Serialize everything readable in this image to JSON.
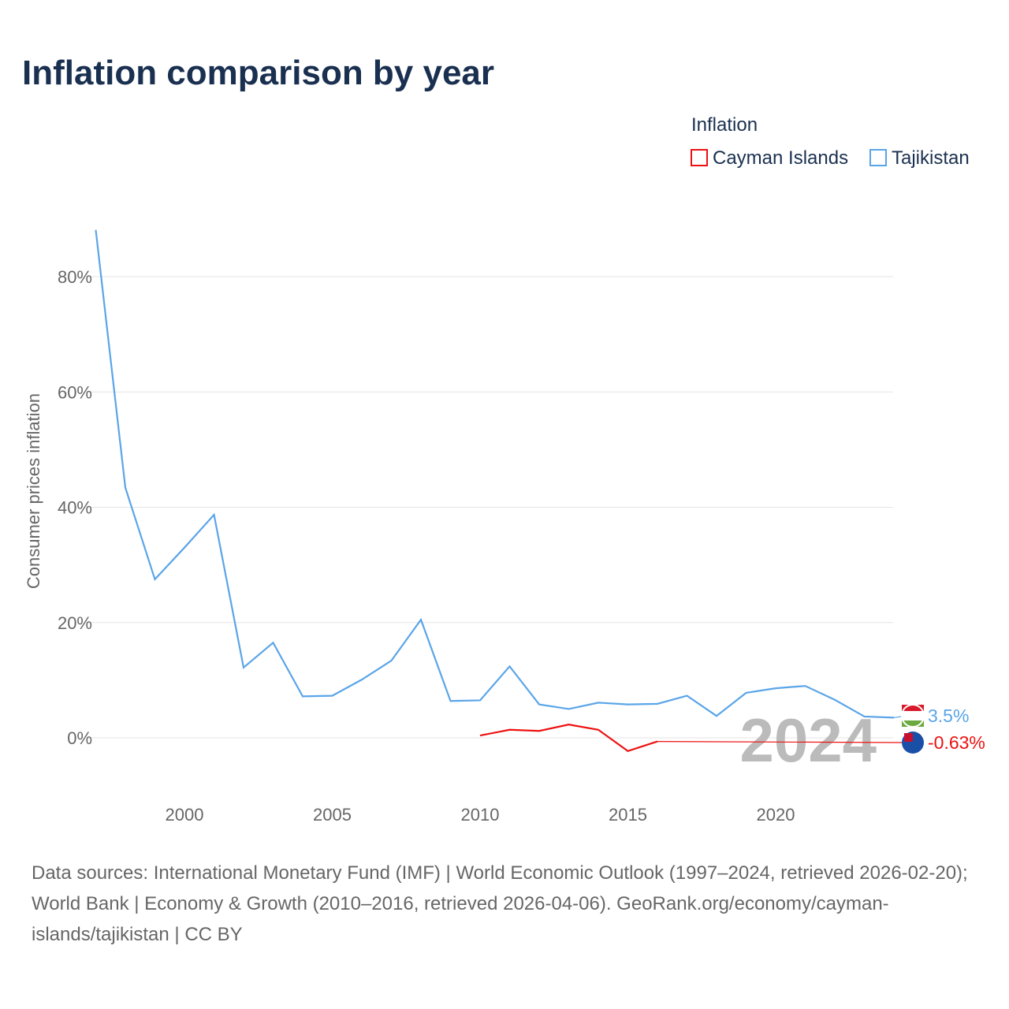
{
  "title": "Inflation comparison by year",
  "legend": {
    "title": "Inflation",
    "items": [
      "Cayman Islands",
      "Tajikistan"
    ]
  },
  "source": "Data sources: International Monetary Fund (IMF) | World Economic Outlook (1997–2024, retrieved 2026-02-20); World Bank | Economy & Growth (2010–2016, retrieved 2026-04-06). GeoRank.org/economy/cayman-islands/tajikistan | CC BY",
  "chart_data": {
    "type": "line",
    "title": "Inflation comparison by year",
    "ylabel": "Consumer prices inflation",
    "xlabel": "",
    "ylim": [
      -10,
      90
    ],
    "xlim": [
      1997,
      2024
    ],
    "yticks": [
      0,
      20,
      40,
      60,
      80
    ],
    "ytick_labels": [
      "0%",
      "20%",
      "40%",
      "60%",
      "80%"
    ],
    "xticks": [
      2000,
      2005,
      2010,
      2015,
      2020
    ],
    "xtick_labels": [
      "2000",
      "2005",
      "2010",
      "2015",
      "2020"
    ],
    "grid": true,
    "year_label": "2024",
    "series": [
      {
        "name": "Tajikistan",
        "color": "#5aa5e8",
        "end_label": "3.5%",
        "x": [
          1997,
          1998,
          1999,
          2000,
          2001,
          2002,
          2003,
          2004,
          2005,
          2006,
          2007,
          2008,
          2009,
          2010,
          2011,
          2012,
          2013,
          2014,
          2015,
          2016,
          2017,
          2018,
          2019,
          2020,
          2021,
          2022,
          2023,
          2024
        ],
        "y": [
          88.1,
          43.4,
          27.5,
          33.0,
          38.7,
          12.2,
          16.5,
          7.2,
          7.3,
          10.1,
          13.4,
          20.5,
          6.4,
          6.5,
          12.4,
          5.8,
          5.0,
          6.1,
          5.8,
          5.9,
          7.3,
          3.8,
          7.8,
          8.6,
          9.0,
          6.6,
          3.7,
          3.5
        ]
      },
      {
        "name": "Cayman Islands",
        "color": "#ee1111",
        "end_label": "-0.63%",
        "x": [
          2010,
          2011,
          2012,
          2013,
          2014,
          2015,
          2016
        ],
        "y": [
          0.4,
          1.4,
          1.2,
          2.3,
          1.4,
          -2.3,
          -0.63
        ]
      }
    ]
  }
}
